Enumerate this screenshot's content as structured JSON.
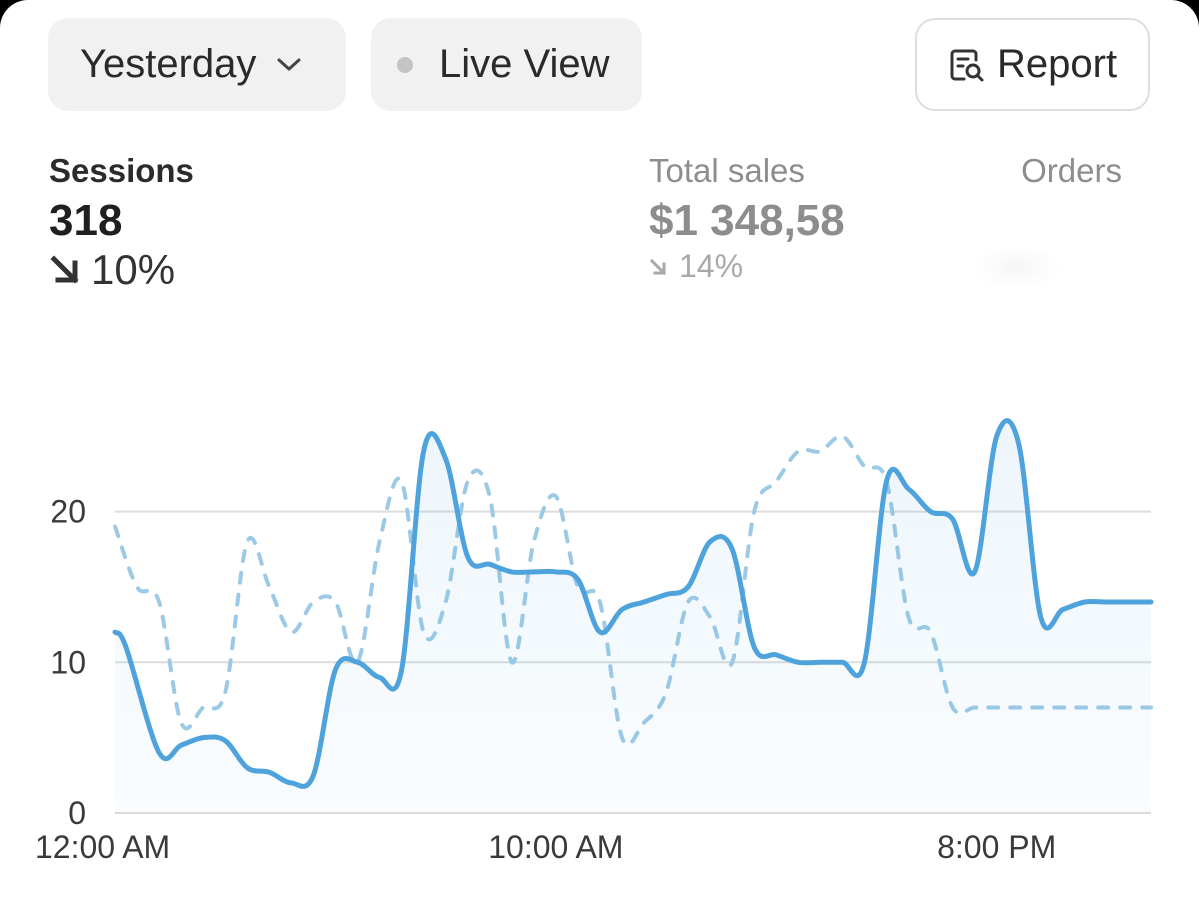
{
  "toolbar": {
    "date_range_label": "Yesterday",
    "live_view_label": "Live View",
    "report_label": "Report"
  },
  "metrics": {
    "sessions": {
      "label": "Sessions",
      "value": "318",
      "change": "10%",
      "direction": "down"
    },
    "total_sales": {
      "label": "Total sales",
      "value": "$1 348,58",
      "change": "14%",
      "direction": "down"
    },
    "orders": {
      "label": "Orders"
    }
  },
  "icons": {
    "date_dropdown": "chevron-down-icon",
    "live": "dot-icon",
    "report": "report-search-icon",
    "trend": "arrow-down-right-icon"
  },
  "colors": {
    "primary_line": "#4fa3dc",
    "comparison_line": "#9ccae6",
    "grid": "#dcdcdc"
  },
  "chart_data": {
    "type": "line",
    "x_tick_labels": [
      "12:00 AM",
      "10:00 AM",
      "8:00 PM"
    ],
    "x_tick_hours": [
      0,
      10,
      20
    ],
    "y_ticks": [
      0,
      10,
      20
    ],
    "ylim": [
      0,
      28
    ],
    "xlim": [
      0,
      23.5
    ],
    "grid": true,
    "series": [
      {
        "style": "solid",
        "area_fill": true,
        "x": [
          0,
          0.25,
          1,
          1.5,
          2,
          2.5,
          3,
          3.5,
          4,
          4.5,
          5,
          5.5,
          6,
          6.5,
          7,
          7.5,
          8,
          8.5,
          9,
          9.5,
          10,
          10.5,
          11,
          11.5,
          12,
          12.5,
          13,
          13.5,
          14,
          14.5,
          15,
          15.5,
          16,
          16.5,
          17,
          17.5,
          18,
          18.5,
          19,
          19.5,
          20,
          20.5,
          21,
          21.5,
          22,
          22.5,
          23,
          23.5
        ],
        "y": [
          12,
          11,
          4,
          4.5,
          5,
          4.8,
          3,
          2.7,
          2,
          2.5,
          9.5,
          10,
          9,
          9.5,
          24,
          23.5,
          17,
          16.5,
          16,
          16,
          16,
          15.5,
          12,
          13.5,
          14,
          14.5,
          15,
          18,
          17.5,
          11,
          10.5,
          10,
          10,
          10,
          10,
          22,
          21.5,
          20,
          19.5,
          16,
          25,
          24.5,
          13,
          13.5,
          14,
          14,
          14,
          14
        ]
      },
      {
        "style": "dashed",
        "area_fill": false,
        "x": [
          0,
          0.5,
          1,
          1.5,
          2,
          2.5,
          3,
          3.5,
          4,
          4.5,
          5,
          5.5,
          6,
          6.5,
          7,
          7.5,
          8,
          8.5,
          9,
          9.5,
          10,
          10.5,
          11,
          11.5,
          12,
          12.5,
          13,
          13.5,
          14,
          14.5,
          15,
          15.5,
          16,
          16.5,
          17,
          17.5,
          18,
          18.5,
          19,
          19.5,
          20,
          20.5,
          21,
          21.5,
          22,
          22.5,
          23,
          23.5
        ],
        "y": [
          19,
          15,
          14,
          6,
          7,
          8,
          18,
          15,
          12,
          14,
          14,
          10,
          18,
          22,
          12,
          14,
          22,
          21,
          10,
          18,
          21,
          15,
          14,
          5,
          6,
          8,
          14,
          13,
          10,
          20,
          22,
          24,
          24,
          25,
          23,
          22,
          13,
          12,
          7,
          7,
          7,
          7,
          7,
          7,
          7,
          7,
          7,
          7
        ]
      }
    ]
  }
}
